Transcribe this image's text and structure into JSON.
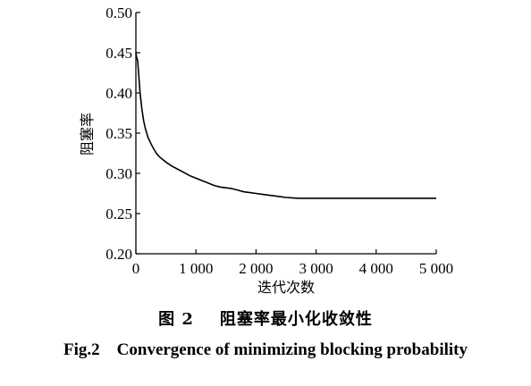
{
  "chart_data": {
    "type": "line",
    "xlabel": "迭代次数",
    "ylabel": "阻塞率",
    "xlim": [
      0,
      5000
    ],
    "ylim": [
      0.2,
      0.5
    ],
    "xticks": [
      0,
      1000,
      2000,
      3000,
      4000,
      5000
    ],
    "xtick_labels": [
      "0",
      "1 000",
      "2 000",
      "3 000",
      "4 000",
      "5 000"
    ],
    "yticks": [
      0.2,
      0.25,
      0.3,
      0.35,
      0.4,
      0.45,
      0.5
    ],
    "ytick_labels": [
      "0.20",
      "0.25",
      "0.30",
      "0.35",
      "0.40",
      "0.45",
      "0.50"
    ],
    "grid": false,
    "series": [
      {
        "color": "#000000",
        "x": [
          0,
          10,
          30,
          50,
          70,
          100,
          130,
          160,
          200,
          250,
          300,
          350,
          400,
          500,
          600,
          700,
          800,
          900,
          1000,
          1100,
          1200,
          1300,
          1400,
          1500,
          1600,
          1700,
          1800,
          1900,
          2000,
          2100,
          2200,
          2300,
          2400,
          2500,
          2600,
          2700,
          3000,
          3500,
          4000,
          4500,
          5000
        ],
        "y": [
          0.45,
          0.445,
          0.44,
          0.42,
          0.4,
          0.38,
          0.365,
          0.355,
          0.345,
          0.337,
          0.33,
          0.324,
          0.32,
          0.314,
          0.309,
          0.305,
          0.301,
          0.297,
          0.294,
          0.291,
          0.288,
          0.285,
          0.283,
          0.282,
          0.281,
          0.279,
          0.277,
          0.276,
          0.275,
          0.274,
          0.273,
          0.272,
          0.271,
          0.27,
          0.2695,
          0.269,
          0.269,
          0.269,
          0.269,
          0.269,
          0.269
        ]
      }
    ]
  },
  "caption": {
    "cn": "图 2    阻塞率最小化收敛性",
    "en": "Fig.2    Convergence of minimizing blocking probability"
  }
}
